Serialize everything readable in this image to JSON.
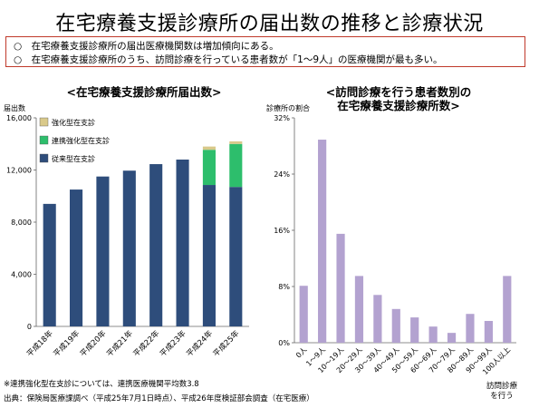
{
  "page": {
    "title": "在宅療養支援診療所の届出数の推移と診療状況",
    "summary": [
      "○　在宅療養支援診療所の届出医療機関数は増加傾向にある。",
      "○　在宅療養支援診療所のうち、訪問診療を行っている患者数が「1～9人」の医療機関が最も多い。"
    ],
    "footnote": "※連携強化型在支診については、連携医療機関平均数3.8",
    "source": "出典：保険局医療課調べ（平成25年7月1日時点）、平成26年度検証部会調査（在宅医療）"
  },
  "chart_data": [
    {
      "type": "bar",
      "stacked": true,
      "title": "<在宅療養支援診療所届出数>",
      "ylabel": "届出数",
      "ylim": [
        0,
        16000
      ],
      "yticks": [
        "0",
        "4,000",
        "8,000",
        "12,000",
        "16,000"
      ],
      "ytick_values": [
        0,
        4000,
        8000,
        12000,
        16000
      ],
      "categories": [
        "平成18年",
        "平成19年",
        "平成20年",
        "平成21年",
        "平成22年",
        "平成23年",
        "平成24年",
        "平成25年"
      ],
      "legend_position": "top-left",
      "series": [
        {
          "name": "従来型在支診",
          "color": "#2e4d7b",
          "values": [
            9400,
            10500,
            11500,
            11950,
            12450,
            12800,
            10850,
            10700
          ]
        },
        {
          "name": "連携強化型在支診",
          "color": "#2dbe6c",
          "values": [
            0,
            0,
            0,
            0,
            0,
            0,
            2700,
            3300
          ]
        },
        {
          "name": "強化型在支診",
          "color": "#d9c98a",
          "values": [
            0,
            0,
            0,
            0,
            0,
            0,
            250,
            200
          ]
        }
      ]
    },
    {
      "type": "bar",
      "title": "<訪問診療を行う患者数別の 在宅療養支援診療所数>",
      "ylabel": "診療所の割合",
      "ylim": [
        0,
        32
      ],
      "yticks": [
        "0%",
        "8%",
        "16%",
        "24%",
        "32%"
      ],
      "ytick_values": [
        0,
        8,
        16,
        24,
        32
      ],
      "xlabel": "訪問診療を行う患者数",
      "color": "#b3a2d0",
      "categories": [
        "0人",
        "1～9人",
        "10～19人",
        "20～29人",
        "30～39人",
        "40～49人",
        "50～59人",
        "60～69人",
        "70～79人",
        "80～89人",
        "90～99人",
        "100人以上"
      ],
      "values": [
        8.1,
        28.9,
        15.5,
        9.5,
        6.8,
        4.8,
        3.6,
        2.3,
        1.4,
        4.1,
        3.1,
        9.5
      ]
    }
  ]
}
